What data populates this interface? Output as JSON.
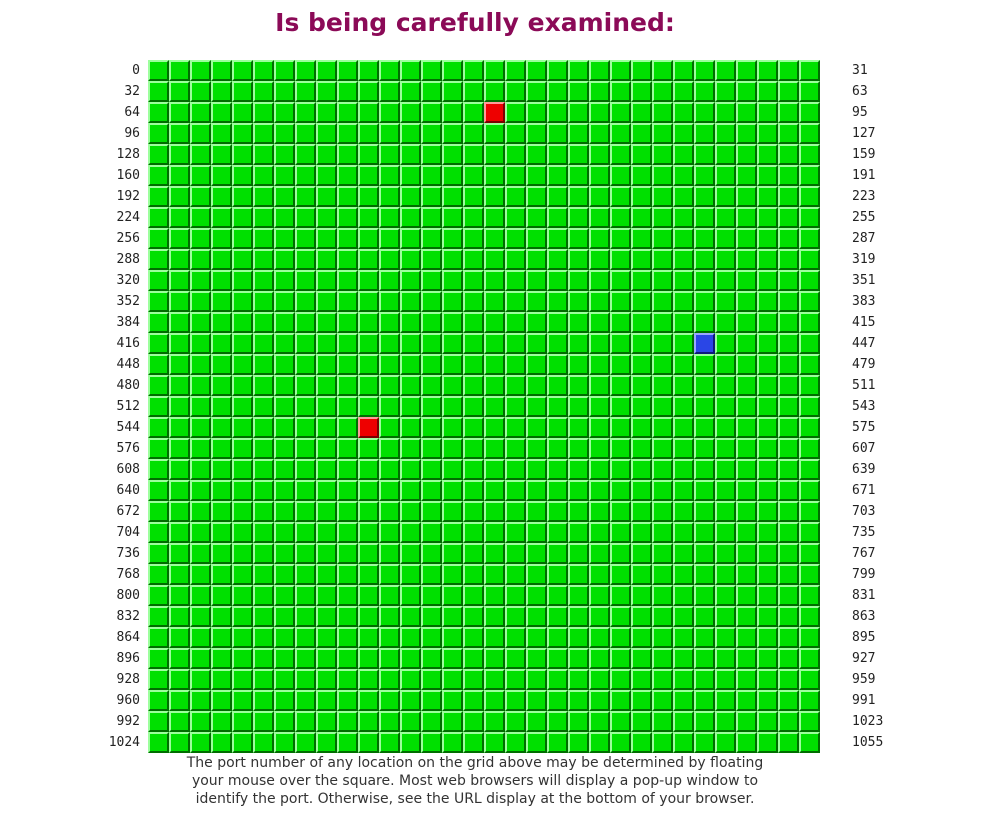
{
  "title": "Is being carefully examined:",
  "grid": {
    "columns": 32,
    "rows": 33,
    "first_port": 0,
    "colors": {
      "normal": "#00e000",
      "flagged_red": "#ee0000",
      "flagged_blue": "#2a46e6"
    },
    "highlighted_ports": [
      {
        "port": 80,
        "color": "red"
      },
      {
        "port": 442,
        "color": "blue"
      },
      {
        "port": 554,
        "color": "red"
      }
    ]
  },
  "left_labels": [
    "0",
    "32",
    "64",
    "96",
    "128",
    "160",
    "192",
    "224",
    "256",
    "288",
    "320",
    "352",
    "384",
    "416",
    "448",
    "480",
    "512",
    "544",
    "576",
    "608",
    "640",
    "672",
    "704",
    "736",
    "768",
    "800",
    "832",
    "864",
    "896",
    "928",
    "960",
    "992",
    "1024"
  ],
  "right_labels": [
    "31",
    "63",
    "95",
    "127",
    "159",
    "191",
    "223",
    "255",
    "287",
    "319",
    "351",
    "383",
    "415",
    "447",
    "479",
    "511",
    "543",
    "575",
    "607",
    "639",
    "671",
    "703",
    "735",
    "767",
    "799",
    "831",
    "863",
    "895",
    "927",
    "959",
    "991",
    "1023",
    "1055"
  ],
  "footer": {
    "line1": "The port number of any location on the grid above may be determined by floating",
    "line2": "your mouse over the square. Most web browsers will display a pop-up window to",
    "line3": "identify the port. Otherwise, see the URL display at the bottom of your browser."
  }
}
